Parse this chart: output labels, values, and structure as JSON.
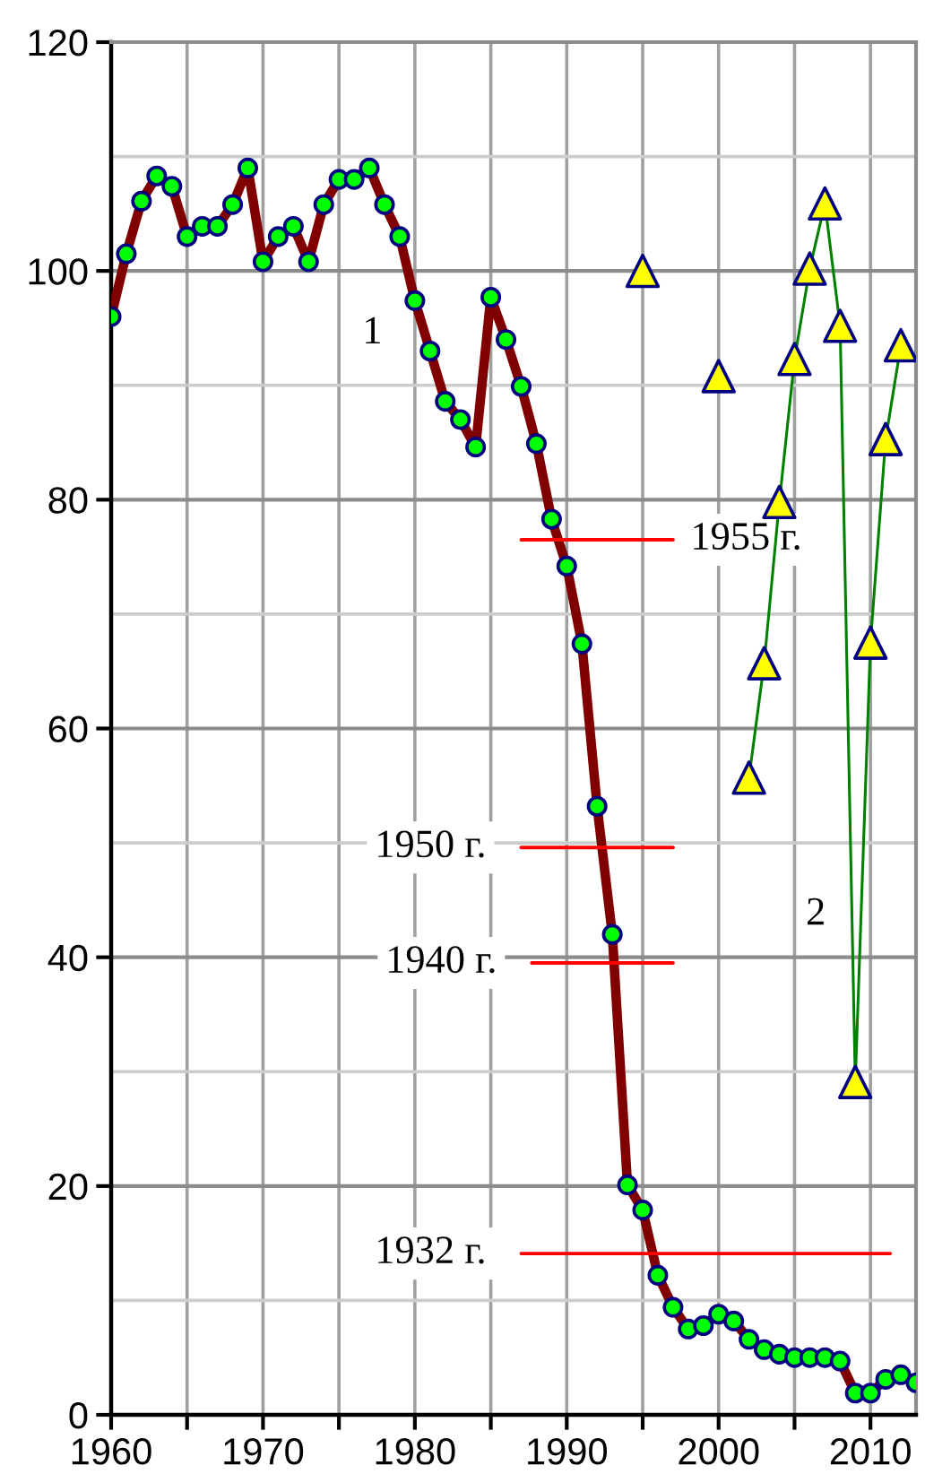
{
  "chart_data": {
    "type": "line",
    "xlim": [
      1960,
      2013
    ],
    "ylim": [
      0,
      120
    ],
    "xticks": [
      1960,
      {
        "value": 1965,
        "label": null
      },
      1970,
      {
        "value": 1975,
        "label": null
      },
      1980,
      {
        "value": 1985,
        "label": null
      },
      1990,
      {
        "value": 1995,
        "label": null
      },
      2000,
      {
        "value": 2005,
        "label": null
      },
      2010
    ],
    "yticks": [
      0,
      {
        "value": 10,
        "label": null
      },
      20,
      {
        "value": 30,
        "label": null
      },
      40,
      {
        "value": 50,
        "label": null
      },
      60,
      {
        "value": 70,
        "label": null
      },
      80,
      {
        "value": 90,
        "label": null
      },
      100,
      {
        "value": 110,
        "label": null
      },
      120
    ],
    "grid": true,
    "line_style": "solid",
    "series": [
      {
        "color": "#800000",
        "marker": "circle",
        "x": [
          1960,
          1961,
          1962,
          1963,
          1964,
          1965,
          1966,
          1967,
          1968,
          1969,
          1970,
          1971,
          1972,
          1973,
          1974,
          1975,
          1976,
          1977,
          1978,
          1979,
          1980,
          1981,
          1982,
          1983,
          1984,
          1985,
          1986,
          1987,
          1988,
          1989,
          1990,
          1991,
          1992,
          1993,
          1994,
          1995,
          1996,
          1997,
          1998,
          1999,
          2000,
          2001,
          2002,
          2003,
          2004,
          2005,
          2006,
          2007,
          2008,
          2009,
          2010,
          2011,
          2012,
          2013
        ],
        "values": [
          96,
          101.5,
          106.1,
          108.3,
          107.4,
          103,
          103.9,
          103.9,
          105.8,
          109,
          100.8,
          103,
          103.9,
          100.8,
          105.8,
          108,
          108,
          109,
          105.8,
          103,
          97.4,
          93,
          88.6,
          87,
          84.6,
          97.7,
          94,
          89.9,
          84.9,
          78.3,
          74.2,
          67.4,
          53.2,
          42,
          20.1,
          17.9,
          12.2,
          9.4,
          7.5,
          7.8,
          8.8,
          8.2,
          6.6,
          5.7,
          5.3,
          5,
          5,
          5,
          4.7,
          1.9,
          1.9,
          3.1,
          3.5,
          2.8
        ],
        "colors": [
          "#00ff00",
          "#00ff00",
          "#00ff00",
          "#00ff00",
          "#00ff00",
          "#00ff00",
          "#00ff00",
          "#00ff00",
          "#00ff00",
          "#00ff00",
          "#00ff00",
          "#00ff00",
          "#00ff00",
          "#00ff00",
          "#00ff00",
          "#00ff00",
          "#00ff00",
          "#00ff00",
          "#00ff00",
          "#00ff00",
          "#00ff00",
          "#00ff00",
          "#00ff00",
          "#00ff00",
          "#00ff00",
          "#00ff00",
          "#00ff00",
          "#00ff00",
          "#00ff00",
          "#00ff00",
          "#00ff00",
          "#00ff00",
          "#00ff00",
          "#00ff00",
          "#00ff00",
          "#00ff00",
          "#00ff00",
          "#00ff00",
          "#00ff00",
          "#00ff00",
          "#00ff00",
          "#00ff00",
          "#00ff00",
          "#00ff00",
          "#00ff00",
          "#00ff00",
          "#00ff00",
          "#00ff00",
          "#00ff00",
          "#00ff00",
          "#00ff00",
          "#00ff00",
          "#00ff00",
          "#00ff00"
        ]
      },
      {
        "color": "#008000",
        "marker": "triangle",
        "x": [
          1995,
          1996,
          1997,
          1998,
          1999,
          2000,
          2001,
          2002,
          2003,
          2004,
          2005,
          2006,
          2007,
          2008,
          2009,
          2010,
          2011,
          2012
        ],
        "values": [
          100,
          null,
          null,
          null,
          null,
          90.8,
          null,
          55.7,
          65.7,
          79.8,
          92.3,
          100.2,
          105.9,
          95.2,
          29.1,
          67.5,
          85.3,
          93.5
        ],
        "colors": [
          "#ffff00",
          null,
          null,
          null,
          null,
          "#ffff00",
          null,
          "#ffff00",
          "#ffff00",
          "#ffff00",
          "#ffff00",
          "#ffff00",
          "#ffff00",
          "#ffff00",
          "#ffff00",
          "#ffff00",
          "#ffff00",
          "#ffff00"
        ]
      },
      {
        "color": "#ff0000",
        "marker": "none",
        "x": [
          1987,
          1997
        ],
        "values": [
          76.5,
          76.5
        ]
      },
      {
        "color": "#ff0000",
        "marker": "none",
        "x": [
          1987,
          1997
        ],
        "values": [
          49.6,
          49.6
        ]
      },
      {
        "color": "#ff0000",
        "marker": "none",
        "x": [
          1987.7,
          1997
        ],
        "values": [
          39.5,
          39.5
        ]
      },
      {
        "color": "#ff0000",
        "marker": "none",
        "x": [
          1987,
          2011.3
        ],
        "values": [
          14.1,
          14.1
        ]
      }
    ],
    "annotations": [
      {
        "text": "1",
        "x": 1977.2,
        "y": 94.5
      },
      {
        "text": "2",
        "x": 2006.4,
        "y": 43.7
      },
      {
        "text": "1955 г.",
        "x": 1997,
        "y": 76.5
      },
      {
        "text": "1950 г.",
        "x": 1987,
        "y": 49.6
      },
      {
        "text": "1940 г.",
        "x": 1987.7,
        "y": 39.5
      },
      {
        "text": "1932 г.",
        "x": 1987,
        "y": 14.1
      }
    ]
  }
}
